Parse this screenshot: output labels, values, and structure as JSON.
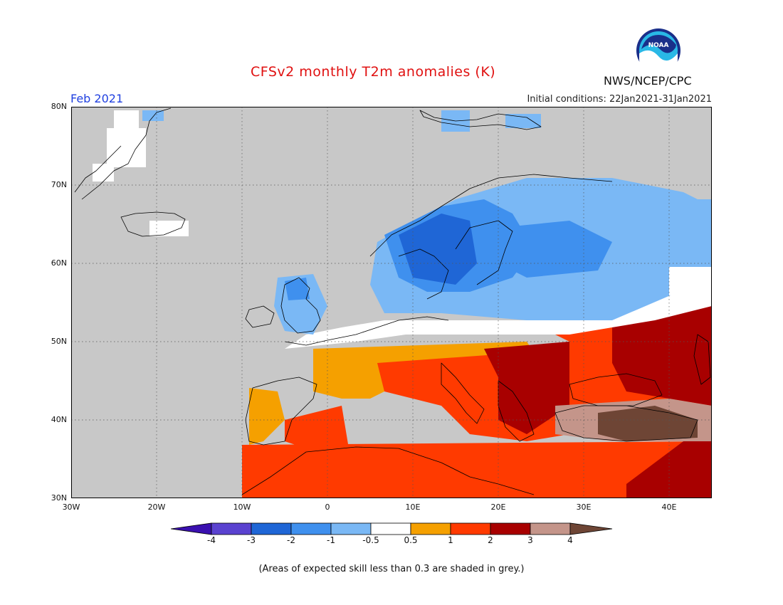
{
  "header": {
    "title": "CFSv2 monthly T2m anomalies (K)",
    "agency": "NWS/NCEP/CPC",
    "logo_text": "NOAA",
    "month": "Feb 2021",
    "initial_conditions": "Initial conditions: 22Jan2021-31Jan2021"
  },
  "axes": {
    "lon_labels": [
      "30W",
      "20W",
      "10W",
      "0",
      "10E",
      "20E",
      "30E",
      "40E"
    ],
    "lat_labels": [
      "80N",
      "70N",
      "60N",
      "50N",
      "40N",
      "30N"
    ]
  },
  "colorbar": {
    "tick_labels": [
      "-4",
      "-3",
      "-2",
      "-1",
      "-0.5",
      "0.5",
      "1",
      "2",
      "3",
      "4"
    ],
    "colors": [
      "#3a10b0",
      "#5a42d0",
      "#1f66d6",
      "#3f90ee",
      "#7ab8f5",
      "#ffffff",
      "#f5a000",
      "#ff3a00",
      "#a80000",
      "#c4958a",
      "#6e4535"
    ],
    "no_skill_color": "#c8c8c8"
  },
  "footer": "(Areas of expected skill less than 0.3 are shaded in grey.)"
}
